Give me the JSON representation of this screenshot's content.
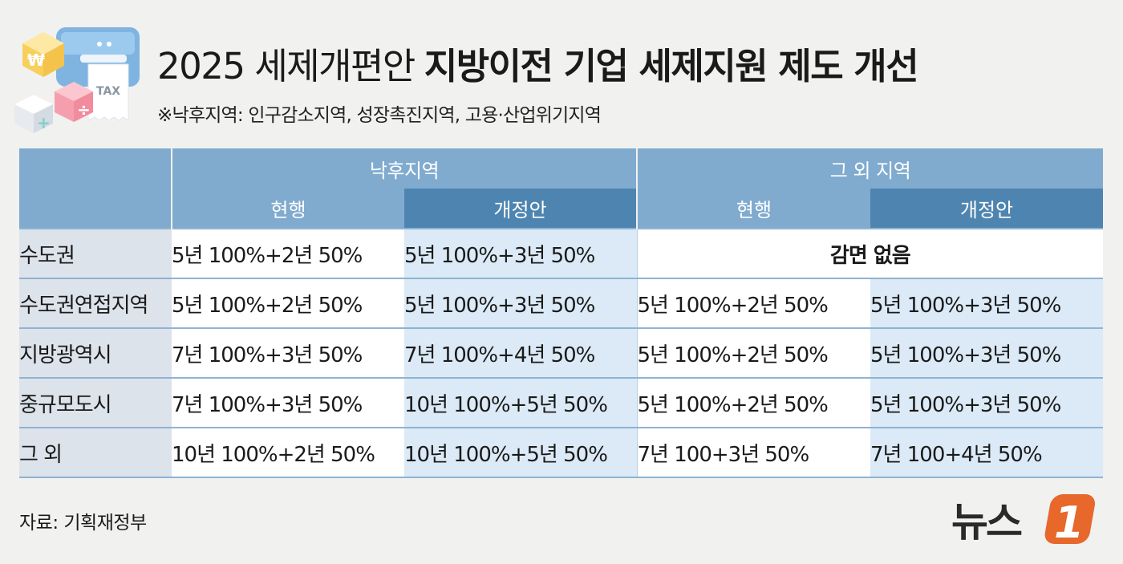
{
  "header": {
    "title_light": "2025 세제개편안",
    "title_bold": "지방이전 기업 세제지원 제도 개선",
    "subtitle": "※낙후지역: 인구감소지역, 성장촉진지역, 고용·산업위기지역",
    "illustration_text": "TAX"
  },
  "table": {
    "groups": [
      "낙후지역",
      "그 외 지역"
    ],
    "subheaders": [
      "현행",
      "개정안",
      "현행",
      "개정안"
    ],
    "rows": [
      {
        "region": "수도권",
        "lag_current": "5년 100%+2년 50%",
        "lag_revised": "5년 100%+3년 50%",
        "other_merged": "감면 없음"
      },
      {
        "region": "수도권연접지역",
        "lag_current": "5년 100%+2년 50%",
        "lag_revised": "5년 100%+3년 50%",
        "other_current": "5년 100%+2년 50%",
        "other_revised": "5년 100%+3년 50%"
      },
      {
        "region": "지방광역시",
        "lag_current": "7년 100%+3년 50%",
        "lag_revised": "7년 100%+4년 50%",
        "other_current": "5년 100%+2년 50%",
        "other_revised": "5년 100%+3년 50%"
      },
      {
        "region": "중규모도시",
        "lag_current": "7년 100%+3년 50%",
        "lag_revised": "10년 100%+5년 50%",
        "other_current": "5년 100%+2년 50%",
        "other_revised": "5년 100%+3년 50%"
      },
      {
        "region": "그 외",
        "lag_current": "10년 100%+2년 50%",
        "lag_revised": "10년 100%+5년 50%",
        "other_current": "7년 100+3년 50%",
        "other_revised": "7년 100+4년 50%"
      }
    ]
  },
  "footer": {
    "source": "자료: 기획재정부",
    "logo_text": "뉴스",
    "logo_mark": "1"
  },
  "colors": {
    "header_light": "#80abcf",
    "header_dark": "#4e85b0",
    "row_label_bg": "#dde3eb",
    "revised_bg": "#dbeaf6",
    "logo_orange": "#e8672a"
  }
}
